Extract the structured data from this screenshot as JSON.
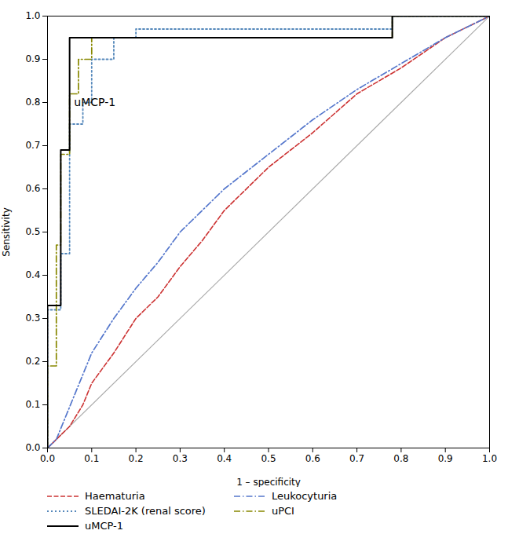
{
  "chart_data": {
    "type": "line",
    "title": "",
    "xlabel": "1 – specificity",
    "ylabel": "Sensitivity",
    "xlim": [
      0,
      1.0
    ],
    "ylim": [
      0,
      1.0
    ],
    "xticks": [
      {
        "value": 0,
        "label": "0.0"
      },
      0.1,
      0.2,
      0.3,
      0.4,
      0.5,
      0.6,
      0.7,
      0.8,
      0.9,
      {
        "value": 1.0,
        "label": "1.0"
      }
    ],
    "yticks": [
      {
        "value": 0,
        "label": "0.0"
      },
      0.1,
      0.2,
      0.3,
      0.4,
      0.5,
      0.6,
      0.7,
      0.8,
      0.9,
      {
        "value": 1.0,
        "label": "1.0"
      }
    ],
    "grid": false,
    "legend": "bottom",
    "annotations": [
      {
        "text": "uMCP-1",
        "x": 0.06,
        "y": 0.8
      }
    ],
    "reference_line": {
      "x": [
        0,
        1
      ],
      "y": [
        0,
        1
      ],
      "color": "#aaaaaa"
    },
    "series": [
      {
        "name": "Haematuria",
        "color": "#cc3333",
        "line_style": "dashed",
        "x": [
          0.0,
          0.02,
          0.05,
          0.08,
          0.1,
          0.15,
          0.2,
          0.25,
          0.3,
          0.35,
          0.4,
          0.5,
          0.6,
          0.7,
          0.8,
          0.9,
          1.0
        ],
        "values": [
          0.0,
          0.02,
          0.05,
          0.1,
          0.15,
          0.22,
          0.3,
          0.35,
          0.42,
          0.48,
          0.55,
          0.65,
          0.73,
          0.82,
          0.88,
          0.95,
          1.0
        ]
      },
      {
        "name": "Leukocyturia",
        "color": "#5577cc",
        "line_style": "dashdot",
        "x": [
          0.0,
          0.02,
          0.04,
          0.06,
          0.08,
          0.1,
          0.15,
          0.2,
          0.25,
          0.3,
          0.4,
          0.5,
          0.6,
          0.7,
          0.8,
          0.9,
          1.0
        ],
        "values": [
          0.0,
          0.02,
          0.07,
          0.12,
          0.17,
          0.22,
          0.3,
          0.37,
          0.43,
          0.5,
          0.6,
          0.68,
          0.76,
          0.83,
          0.89,
          0.95,
          1.0
        ]
      },
      {
        "name": "SLEDAI-2K (renal score)",
        "color": "#5588bb",
        "line_style": "dotted",
        "x": [
          0.0,
          0.0,
          0.03,
          0.03,
          0.05,
          0.05,
          0.08,
          0.08,
          0.1,
          0.1,
          0.15,
          0.15,
          0.2,
          0.2,
          0.78,
          0.78,
          1.0
        ],
        "values": [
          0.0,
          0.32,
          0.32,
          0.45,
          0.45,
          0.75,
          0.75,
          0.8,
          0.8,
          0.9,
          0.9,
          0.95,
          0.95,
          0.97,
          0.97,
          1.0,
          1.0
        ]
      },
      {
        "name": "uPCI",
        "color": "#888800",
        "line_style": "dashdot",
        "x": [
          0.0,
          0.0,
          0.02,
          0.02,
          0.03,
          0.03,
          0.05,
          0.05,
          0.07,
          0.07,
          0.1,
          0.1,
          0.78,
          0.78,
          1.0
        ],
        "values": [
          0.0,
          0.19,
          0.19,
          0.47,
          0.47,
          0.68,
          0.68,
          0.82,
          0.82,
          0.9,
          0.9,
          0.95,
          0.95,
          1.0,
          1.0
        ]
      },
      {
        "name": "uMCP-1",
        "color": "#000000",
        "line_style": "solid",
        "x": [
          0.0,
          0.0,
          0.0,
          0.03,
          0.03,
          0.03,
          0.05,
          0.05,
          0.05,
          0.05,
          0.78,
          0.78,
          1.0
        ],
        "values": [
          0.0,
          0.05,
          0.33,
          0.33,
          0.61,
          0.69,
          0.69,
          0.84,
          0.9,
          0.95,
          0.95,
          1.0,
          1.0
        ]
      }
    ]
  }
}
